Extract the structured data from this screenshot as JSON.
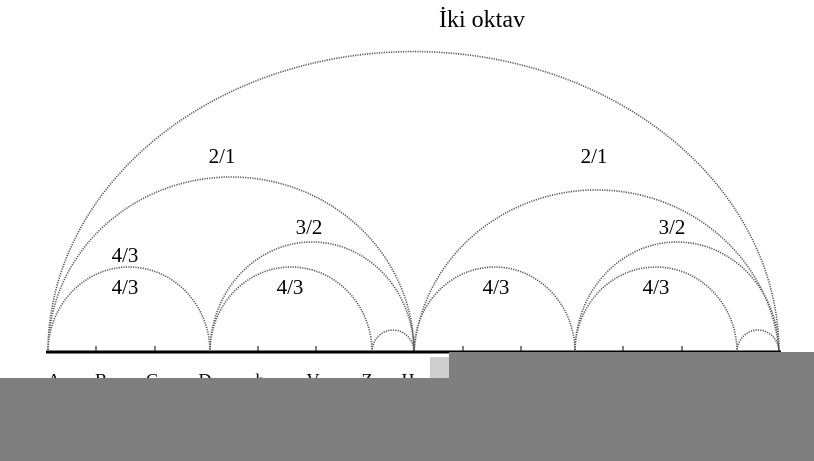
{
  "title": "İki oktav",
  "ratios": {
    "double_octave_left": "2/1",
    "double_octave_right": "2/1",
    "fifth_left": "3/2",
    "fifth_right": "3/2",
    "fourth_upper_left": "4/3",
    "fourth_lower_left": "4/3",
    "fourth_middle": "4/3",
    "fourth_center": "4/3",
    "fourth_right": "4/3"
  },
  "notes": [
    "A",
    "B",
    "C",
    "D",
    "h",
    "V",
    "Z",
    "H"
  ],
  "colors": {
    "arc": "#555555",
    "baseline": "#000000",
    "occluder": "#7f7f7f"
  }
}
